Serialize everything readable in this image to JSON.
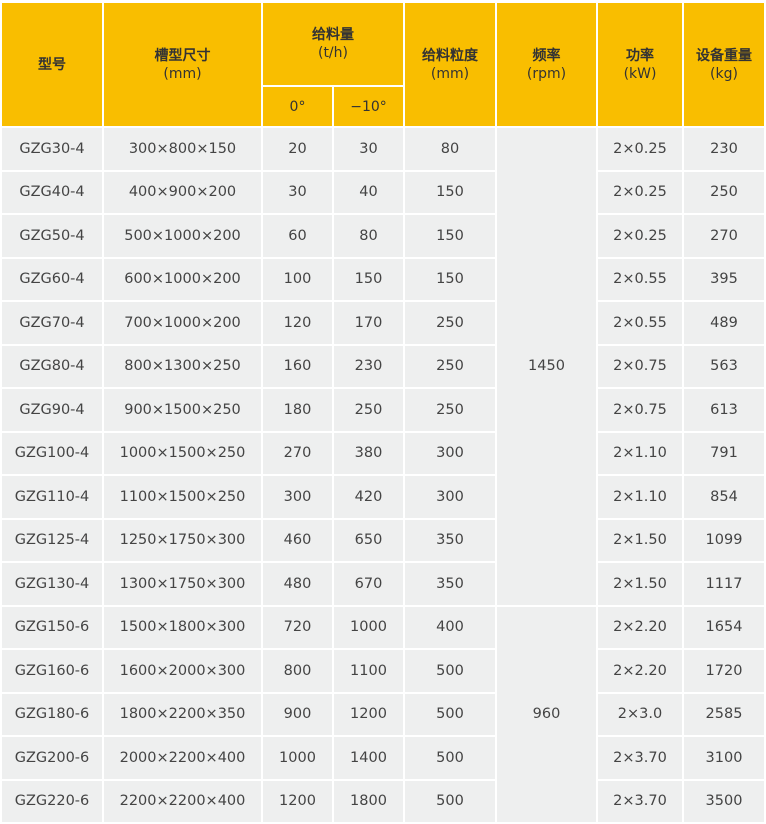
{
  "colors": {
    "header_bg": "#F9BE00",
    "cell_bg": "#EEEFEF"
  },
  "header": {
    "model": "型号",
    "trough_size": {
      "label": "槽型尺寸",
      "unit": "(mm)"
    },
    "feed_capacity": {
      "label": "给料量",
      "unit": "(t/h)",
      "sub": [
        "0°",
        "−10°"
      ]
    },
    "feed_size": {
      "label": "给料粒度",
      "unit": "(mm)"
    },
    "frequency": {
      "label": "频率",
      "unit": "(rpm)"
    },
    "power": {
      "label": "功率",
      "unit": "(kW)"
    },
    "weight": {
      "label": "设备重量",
      "unit": "(kg)"
    }
  },
  "rows": [
    {
      "model": "GZG30-4",
      "size": "300×800×150",
      "cap0": "20",
      "cap10": "30",
      "feed": "80",
      "power": "2×0.25",
      "weight": "230"
    },
    {
      "model": "GZG40-4",
      "size": "400×900×200",
      "cap0": "30",
      "cap10": "40",
      "feed": "150",
      "power": "2×0.25",
      "weight": "250"
    },
    {
      "model": "GZG50-4",
      "size": "500×1000×200",
      "cap0": "60",
      "cap10": "80",
      "feed": "150",
      "power": "2×0.25",
      "weight": "270"
    },
    {
      "model": "GZG60-4",
      "size": "600×1000×200",
      "cap0": "100",
      "cap10": "150",
      "feed": "150",
      "power": "2×0.55",
      "weight": "395"
    },
    {
      "model": "GZG70-4",
      "size": "700×1000×200",
      "cap0": "120",
      "cap10": "170",
      "feed": "250",
      "power": "2×0.55",
      "weight": "489"
    },
    {
      "model": "GZG80-4",
      "size": "800×1300×250",
      "cap0": "160",
      "cap10": "230",
      "feed": "250",
      "power": "2×0.75",
      "weight": "563"
    },
    {
      "model": "GZG90-4",
      "size": "900×1500×250",
      "cap0": "180",
      "cap10": "250",
      "feed": "250",
      "power": "2×0.75",
      "weight": "613"
    },
    {
      "model": "GZG100-4",
      "size": "1000×1500×250",
      "cap0": "270",
      "cap10": "380",
      "feed": "300",
      "power": "2×1.10",
      "weight": "791"
    },
    {
      "model": "GZG110-4",
      "size": "1100×1500×250",
      "cap0": "300",
      "cap10": "420",
      "feed": "300",
      "power": "2×1.10",
      "weight": "854"
    },
    {
      "model": "GZG125-4",
      "size": "1250×1750×300",
      "cap0": "460",
      "cap10": "650",
      "feed": "350",
      "power": "2×1.50",
      "weight": "1099"
    },
    {
      "model": "GZG130-4",
      "size": "1300×1750×300",
      "cap0": "480",
      "cap10": "670",
      "feed": "350",
      "power": "2×1.50",
      "weight": "1117"
    },
    {
      "model": "GZG150-6",
      "size": "1500×1800×300",
      "cap0": "720",
      "cap10": "1000",
      "feed": "400",
      "power": "2×2.20",
      "weight": "1654"
    },
    {
      "model": "GZG160-6",
      "size": "1600×2000×300",
      "cap0": "800",
      "cap10": "1100",
      "feed": "500",
      "power": "2×2.20",
      "weight": "1720"
    },
    {
      "model": "GZG180-6",
      "size": "1800×2200×350",
      "cap0": "900",
      "cap10": "1200",
      "feed": "500",
      "power": "2×3.0",
      "weight": "2585"
    },
    {
      "model": "GZG200-6",
      "size": "2000×2200×400",
      "cap0": "1000",
      "cap10": "1400",
      "feed": "500",
      "power": "2×3.70",
      "weight": "3100"
    },
    {
      "model": "GZG220-6",
      "size": "2200×2200×400",
      "cap0": "1200",
      "cap10": "1800",
      "feed": "500",
      "power": "2×3.70",
      "weight": "3500"
    }
  ],
  "frequency_groups": [
    {
      "value": "1450",
      "start": 0,
      "span": 11
    },
    {
      "value": "960",
      "start": 11,
      "span": 5
    }
  ]
}
